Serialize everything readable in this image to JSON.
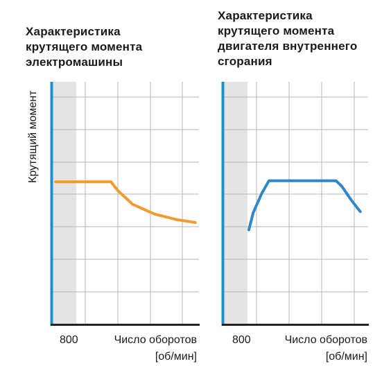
{
  "chart_data": [
    {
      "type": "line",
      "title": "Характеристика\nкрутящего момента\nэлектромашины",
      "ylabel": "Крутящий момент",
      "xlabel_line1": "Число оборотов",
      "xlabel_line2": "[об/мин]",
      "x_tick_label": "800",
      "series": [
        {
          "color": "#f39a2b",
          "points": [
            [
              0.02,
              0.588
            ],
            [
              0.4,
              0.588
            ],
            [
              0.45,
              0.55
            ],
            [
              0.55,
              0.495
            ],
            [
              0.7,
              0.455
            ],
            [
              0.85,
              0.432
            ],
            [
              0.98,
              0.42
            ]
          ]
        }
      ]
    },
    {
      "type": "line",
      "title": "Характеристика\nкрутящего момента\nдвигателя внутреннего\nсгорания",
      "xlabel_line1": "Число оборотов",
      "xlabel_line2": "[об/мин]",
      "x_tick_label": "800",
      "series": [
        {
          "color": "#2f86c8",
          "points": [
            [
              0.17,
              0.39
            ],
            [
              0.2,
              0.46
            ],
            [
              0.26,
              0.54
            ],
            [
              0.31,
              0.592
            ],
            [
              0.78,
              0.592
            ],
            [
              0.82,
              0.57
            ],
            [
              0.89,
              0.51
            ],
            [
              0.95,
              0.465
            ]
          ]
        }
      ]
    }
  ],
  "style": {
    "axis_color": "#1e8fcf",
    "grid_color": "#b5b5b5",
    "shade_color": "#e4e4e4",
    "baseline_color": "#222222"
  }
}
